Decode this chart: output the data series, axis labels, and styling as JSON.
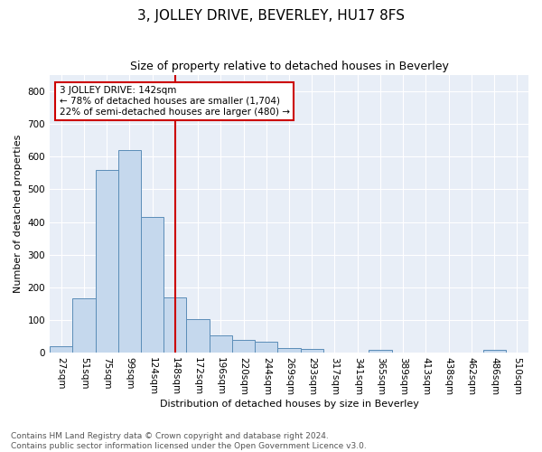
{
  "title": "3, JOLLEY DRIVE, BEVERLEY, HU17 8FS",
  "subtitle": "Size of property relative to detached houses in Beverley",
  "xlabel": "Distribution of detached houses by size in Beverley",
  "ylabel": "Number of detached properties",
  "footer_line1": "Contains HM Land Registry data © Crown copyright and database right 2024.",
  "footer_line2": "Contains public sector information licensed under the Open Government Licence v3.0.",
  "annotation_line1": "3 JOLLEY DRIVE: 142sqm",
  "annotation_line2": "← 78% of detached houses are smaller (1,704)",
  "annotation_line3": "22% of semi-detached houses are larger (480) →",
  "bar_color": "#c5d8ed",
  "bar_edge_color": "#5b8db8",
  "vline_color": "#cc0000",
  "vline_x": 5,
  "annotation_box_edge_color": "#cc0000",
  "background_color": "#e8eef7",
  "categories": [
    "27sqm",
    "51sqm",
    "75sqm",
    "99sqm",
    "124sqm",
    "148sqm",
    "172sqm",
    "196sqm",
    "220sqm",
    "244sqm",
    "269sqm",
    "293sqm",
    "317sqm",
    "341sqm",
    "365sqm",
    "389sqm",
    "413sqm",
    "438sqm",
    "462sqm",
    "486sqm",
    "510sqm"
  ],
  "values": [
    20,
    165,
    560,
    620,
    415,
    170,
    103,
    52,
    40,
    32,
    14,
    10,
    0,
    0,
    7,
    0,
    0,
    0,
    0,
    8,
    0
  ],
  "ylim": [
    0,
    850
  ],
  "yticks": [
    0,
    100,
    200,
    300,
    400,
    500,
    600,
    700,
    800
  ],
  "title_fontsize": 11,
  "subtitle_fontsize": 9,
  "ylabel_fontsize": 8,
  "xlabel_fontsize": 8,
  "tick_fontsize": 7.5,
  "footer_fontsize": 6.5,
  "annotation_fontsize": 7.5
}
